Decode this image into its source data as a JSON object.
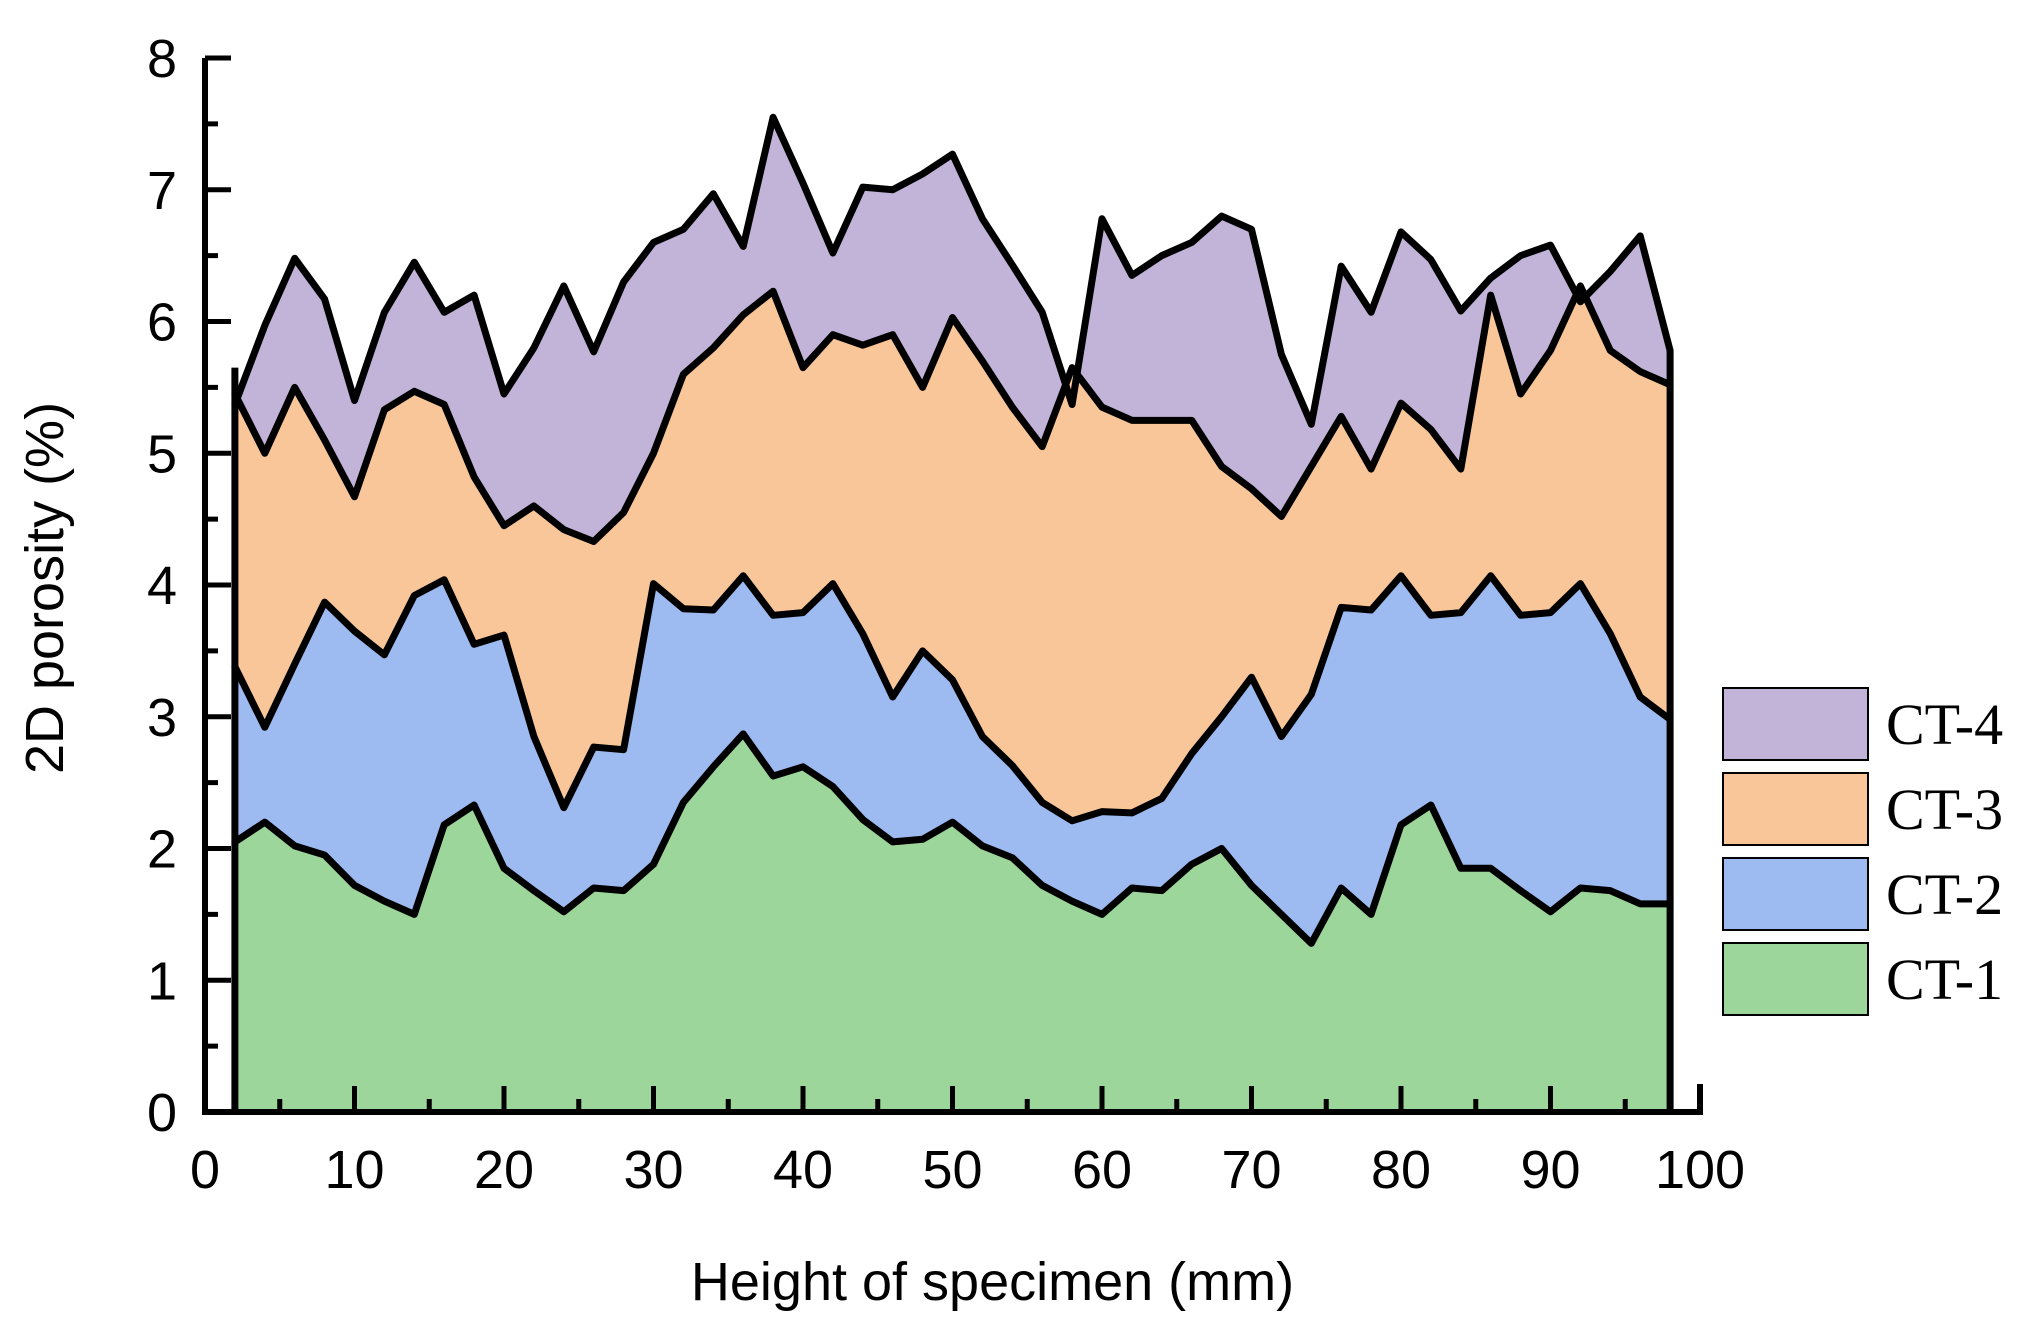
{
  "chart_data": {
    "type": "area",
    "title": "",
    "xlabel": "Height of specimen (mm)",
    "ylabel": "2D porosity (%)",
    "xlim": [
      0,
      100
    ],
    "ylim": [
      0,
      8
    ],
    "xticks": [
      "0",
      "10",
      "20",
      "30",
      "40",
      "50",
      "60",
      "70",
      "80",
      "90",
      "100"
    ],
    "yticks": [
      "0",
      "1",
      "2",
      "3",
      "4",
      "5",
      "6",
      "7",
      "8"
    ],
    "legend_position": "right",
    "x": [
      2,
      4,
      6,
      8,
      10,
      12,
      14,
      16,
      18,
      20,
      22,
      24,
      26,
      28,
      30,
      32,
      34,
      36,
      38,
      40,
      42,
      44,
      46,
      48,
      50,
      52,
      54,
      56,
      58,
      60,
      62,
      64,
      66,
      68,
      70,
      72,
      74,
      76,
      78,
      80,
      82,
      84,
      86,
      88,
      90,
      92,
      94,
      96,
      98
    ],
    "series": [
      {
        "name": "CT-1",
        "color": "#9dd69b",
        "values": [
          2.05,
          2.2,
          2.02,
          1.95,
          1.72,
          1.6,
          1.5,
          2.18,
          2.33,
          1.85,
          1.68,
          1.52,
          1.7,
          1.68,
          1.88,
          2.35,
          2.62,
          2.87,
          2.55,
          2.62,
          2.47,
          2.22,
          2.05,
          2.07,
          2.2,
          2.02,
          1.93,
          1.72,
          1.6,
          1.5,
          1.7,
          1.68,
          1.88,
          2.0,
          1.72,
          1.5,
          1.28,
          1.7,
          1.5,
          2.18,
          2.33,
          1.85,
          1.85,
          1.68,
          1.52,
          1.7,
          1.68,
          1.58,
          1.58
        ]
      },
      {
        "name": "CT-2",
        "color": "#9dbaf1",
        "values": [
          3.38,
          2.92,
          3.4,
          3.87,
          3.65,
          3.47,
          3.92,
          4.04,
          3.55,
          3.62,
          2.85,
          2.31,
          2.77,
          2.75,
          4.01,
          3.82,
          3.81,
          4.07,
          3.77,
          3.79,
          4.01,
          3.63,
          3.15,
          3.5,
          3.28,
          2.85,
          2.63,
          2.35,
          2.21,
          2.28,
          2.27,
          2.38,
          2.72,
          3.0,
          3.3,
          2.85,
          3.17,
          3.83,
          3.81,
          4.07,
          3.77,
          3.79,
          4.07,
          3.77,
          3.79,
          4.01,
          3.63,
          3.15,
          2.98
        ]
      },
      {
        "name": "CT-3",
        "color": "#f9c699",
        "values": [
          5.45,
          5.0,
          5.5,
          5.1,
          4.67,
          5.33,
          5.47,
          5.37,
          4.82,
          4.45,
          4.6,
          4.42,
          4.33,
          4.55,
          5.0,
          5.6,
          5.8,
          6.05,
          6.23,
          5.65,
          5.9,
          5.82,
          5.9,
          5.5,
          6.03,
          5.7,
          5.35,
          5.05,
          5.65,
          5.35,
          5.25,
          5.25,
          5.25,
          4.9,
          4.73,
          4.52,
          4.9,
          5.28,
          4.88,
          5.38,
          5.18,
          4.88,
          6.2,
          5.45,
          5.78,
          6.27,
          5.78,
          5.62,
          5.52
        ]
      },
      {
        "name": "CT-4",
        "color": "#c2b3d8",
        "values": [
          5.37,
          5.97,
          6.48,
          6.17,
          5.4,
          6.07,
          6.45,
          6.07,
          6.2,
          5.45,
          5.8,
          6.27,
          5.77,
          6.3,
          6.6,
          6.7,
          6.97,
          6.57,
          7.55,
          7.05,
          6.52,
          7.02,
          7.0,
          7.12,
          7.27,
          6.78,
          6.43,
          6.07,
          5.37,
          6.78,
          6.35,
          6.5,
          6.6,
          6.8,
          6.7,
          5.75,
          5.22,
          6.42,
          6.07,
          6.68,
          6.47,
          6.08,
          6.33,
          6.5,
          6.58,
          6.15,
          6.38,
          6.65,
          5.78
        ]
      }
    ],
    "legend": [
      "CT-4",
      "CT-3",
      "CT-2",
      "CT-1"
    ]
  }
}
